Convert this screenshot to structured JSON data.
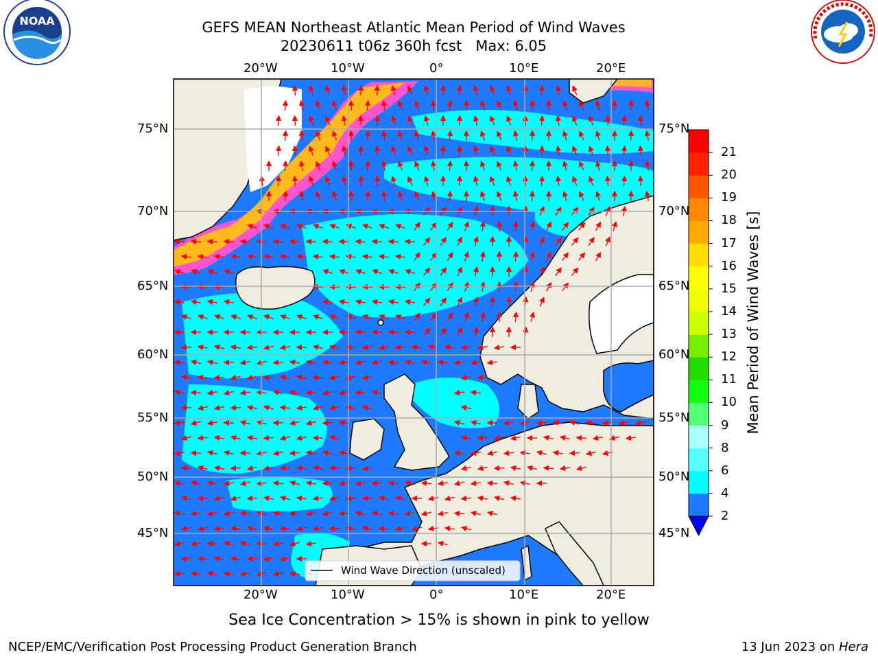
{
  "title": {
    "line1": "GEFS MEAN Northeast Atlantic Mean Period of Wind Waves",
    "line2": "20230611 t06z 360h fcst   Max: 6.05"
  },
  "map": {
    "lon_labels": [
      "20°W",
      "10°W",
      "0°",
      "10°E",
      "20°E"
    ],
    "lat_labels": [
      "75°N",
      "70°N",
      "65°N",
      "60°N",
      "55°N",
      "50°N",
      "45°N"
    ],
    "legend_text": "Wind Wave Direction (unscaled)",
    "colors": {
      "ocean_low": "#1e7bff",
      "ocean_mid": "#00ffff",
      "land": "#efede0",
      "arrow": "#ff0000",
      "ice_pink": "#ff44cc",
      "ice_yellow": "#ffcc00"
    }
  },
  "colorbar": {
    "label": "Mean Period of Wind Waves [s]",
    "tick_labels": [
      "2",
      "4",
      "6",
      "8",
      "9",
      "10",
      "11",
      "12",
      "13",
      "14",
      "15",
      "16",
      "17",
      "18",
      "19",
      "20",
      "21"
    ],
    "bin_colors": [
      "#1e7bff",
      "#00ffff",
      "#55ffff",
      "#aaffff",
      "#55ff77",
      "#11ff11",
      "#22dd00",
      "#77ee00",
      "#ccff00",
      "#eeff00",
      "#ffff00",
      "#ffdd00",
      "#ffaa00",
      "#ff8800",
      "#ff5500",
      "#ff2200",
      "#ff0000"
    ],
    "extend_color": "#0000ff"
  },
  "footer": {
    "note": "Sea Ice Concentration > 15% is shown in pink to yellow",
    "credit": "NCEP/EMC/Verification Post Processing Product Generation Branch",
    "date_prefix": "13 Jun 2023 on ",
    "date_machine": "Hera"
  },
  "logos": {
    "left": {
      "name": "NOAA",
      "text": "NOAA"
    },
    "right": {
      "name": "National Weather Service",
      "ring_text": "NATIONAL WEATHER SERVICE"
    }
  }
}
